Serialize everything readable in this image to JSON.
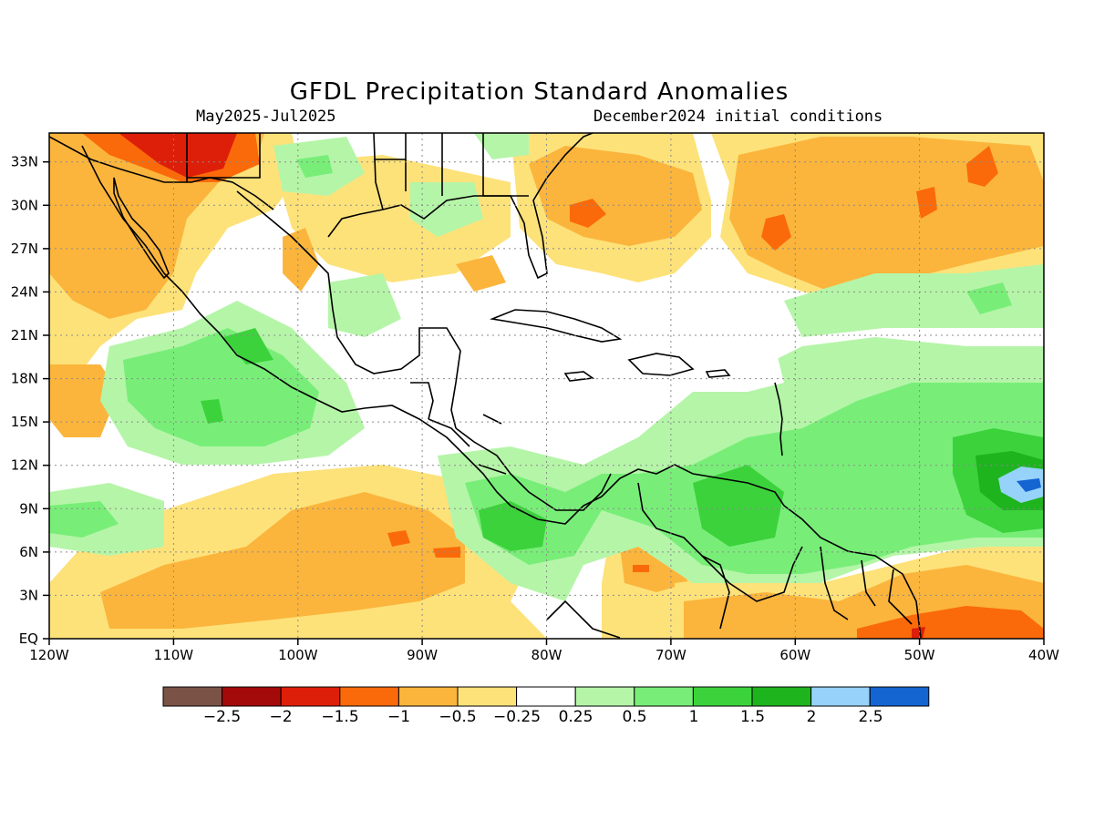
{
  "title": "GFDL Precipitation Standard Anomalies",
  "subtitle_left": "May2025-Jul2025",
  "subtitle_right": "December2024 initial conditions",
  "map": {
    "region": "Caribbean / Central America / Gulf of Mexico",
    "lon_range": [
      -120,
      -40
    ],
    "lat_range": [
      0,
      35
    ],
    "lon_ticks": [
      "120W",
      "110W",
      "100W",
      "90W",
      "80W",
      "70W",
      "60W",
      "50W",
      "40W"
    ],
    "lat_ticks": [
      "EQ",
      "3N",
      "6N",
      "9N",
      "12N",
      "15N",
      "18N",
      "21N",
      "24N",
      "27N",
      "30N",
      "33N"
    ],
    "gridlines": "dotted"
  },
  "colorbar": {
    "colors": [
      "#7a5346",
      "#a50a0a",
      "#dd1f0a",
      "#fa6a0a",
      "#fbb53c",
      "#fde27a",
      "#ffffff",
      "#b5f5a8",
      "#78ee78",
      "#3cd23c",
      "#1eb41e",
      "#96d2fa",
      "#1464d2"
    ],
    "labels": [
      "-2.5",
      "-2",
      "-1.5",
      "-1",
      "-0.5",
      "-0.25",
      "0.25",
      "0.5",
      "1",
      "1.5",
      "2",
      "2.5"
    ]
  }
}
